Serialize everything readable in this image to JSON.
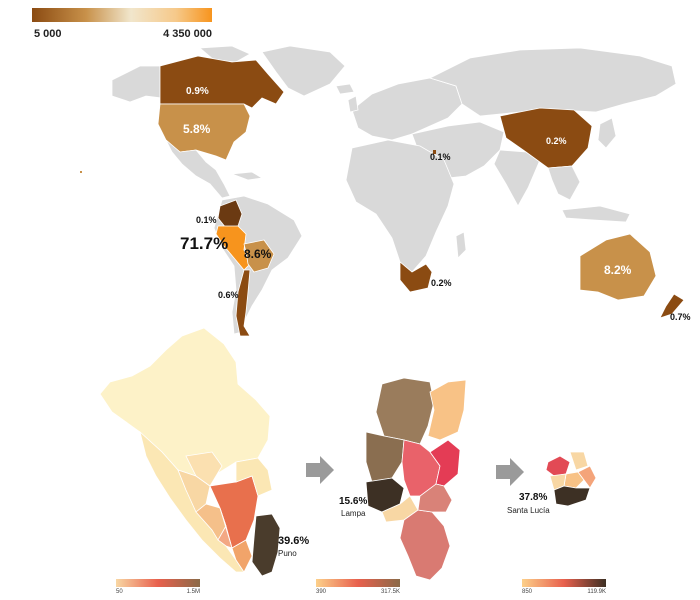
{
  "world_legend": {
    "min_label": "5 000",
    "max_label": "4 350 000",
    "colors": [
      "#8b4b12",
      "#c8914a",
      "#f1e6cc",
      "#f6c98a",
      "#f7941d"
    ]
  },
  "world_labels": {
    "canada": "0.9%",
    "usa": "5.8%",
    "china": "0.2%",
    "israel": "0.1%",
    "colombia": "0.1%",
    "peru": "71.7%",
    "bolivia": "8.6%",
    "chile": "0.6%",
    "south_africa": "0.2%",
    "australia": "8.2%",
    "new_zealand": "0.7%"
  },
  "region_maps": [
    {
      "callout_value": "39.6%",
      "callout_name": "Puno",
      "legend_min": "50",
      "legend_max": "1.5M",
      "legend_colors": [
        "#f8d7a4",
        "#e8604d",
        "#8a6a48"
      ]
    },
    {
      "callout_value": "15.6%",
      "callout_name": "Lampa",
      "legend_min": "390",
      "legend_max": "317.5K",
      "legend_colors": [
        "#fcd08a",
        "#e8604d",
        "#8a6a48"
      ]
    },
    {
      "callout_value": "37.8%",
      "callout_name": "Santa Lucía",
      "legend_min": "850",
      "legend_max": "119.9K",
      "legend_colors": [
        "#fcd08a",
        "#e8604d",
        "#3d3024"
      ]
    }
  ],
  "colors": {
    "background": "#ffffff",
    "no_data": "#d9d9d9",
    "arrow": "#9a9a9a"
  }
}
